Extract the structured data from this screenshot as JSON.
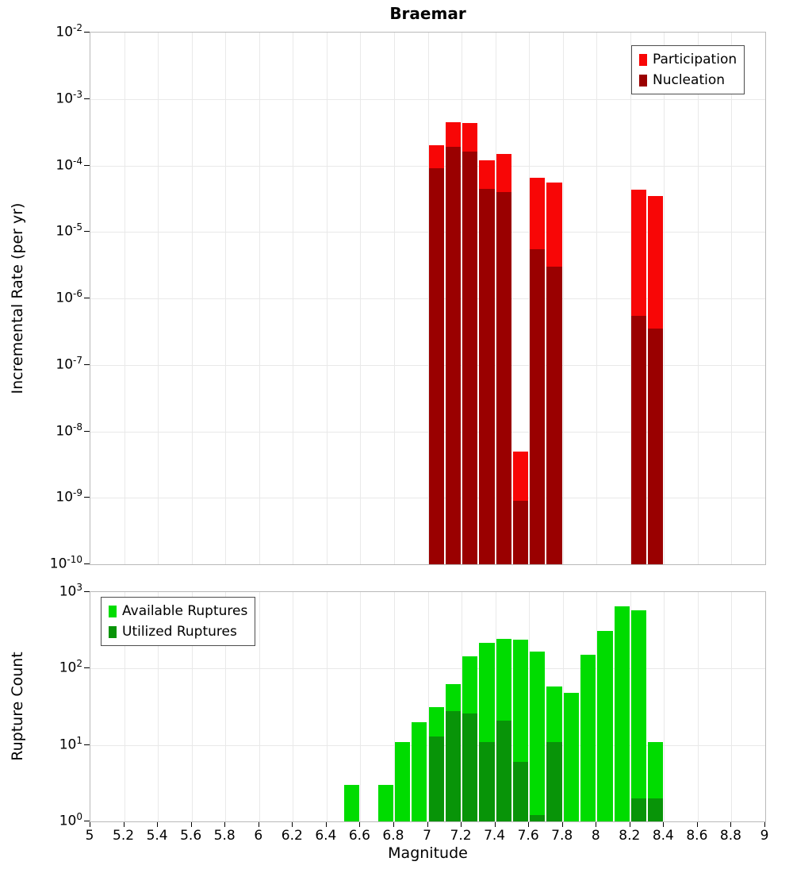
{
  "title": "Braemar",
  "axes": {
    "log_base": "10",
    "x_tick_labels": [
      "5",
      "5.2",
      "5.4",
      "5.6",
      "5.8",
      "6",
      "6.2",
      "6.4",
      "6.6",
      "6.8",
      "7",
      "7.2",
      "7.4",
      "7.6",
      "7.8",
      "8",
      "8.2",
      "8.4",
      "8.6",
      "8.8",
      "9"
    ],
    "top_y_tick_exponents": [
      "-2",
      "-3",
      "-4",
      "-5",
      "-6",
      "-7",
      "-8",
      "-9",
      "-10"
    ],
    "bottom_y_tick_exponents": [
      "3",
      "2",
      "1",
      "0"
    ]
  },
  "chart_data": [
    {
      "type": "bar",
      "panel": "top",
      "title": "Braemar",
      "xlabel": "Magnitude",
      "ylabel": "Incremental Rate (per yr)",
      "xlim": [
        5,
        9
      ],
      "ylim": [
        1e-10,
        0.01
      ],
      "yscale": "log",
      "grid": true,
      "legend_position": "top-right",
      "bin_width": 0.1,
      "bin_starts": [
        7.0,
        7.1,
        7.2,
        7.3,
        7.4,
        7.5,
        7.6,
        7.7,
        8.2,
        8.3
      ],
      "series": [
        {
          "name": "Participation",
          "color": "#f80606",
          "values": [
            0.0002,
            0.00045,
            0.00043,
            0.00012,
            0.00015,
            5e-09,
            6.5e-05,
            5.5e-05,
            4.3e-05,
            3.5e-05
          ]
        },
        {
          "name": "Nucleation",
          "color": "#9a0000",
          "values": [
            9e-05,
            0.00019,
            0.00016,
            4.5e-05,
            4e-05,
            9e-10,
            5.5e-06,
            3e-06,
            5.5e-07,
            3.5e-07
          ]
        }
      ]
    },
    {
      "type": "bar",
      "panel": "bottom",
      "title": "",
      "xlabel": "Magnitude",
      "ylabel": "Rupture Count",
      "xlim": [
        5,
        9
      ],
      "ylim": [
        1,
        1000
      ],
      "yscale": "log",
      "grid": true,
      "legend_position": "top-left",
      "bin_width": 0.1,
      "bin_starts": [
        6.5,
        6.7,
        6.8,
        6.9,
        7.0,
        7.1,
        7.2,
        7.3,
        7.4,
        7.5,
        7.6,
        7.7,
        7.8,
        7.9,
        8.0,
        8.1,
        8.2,
        8.3
      ],
      "series": [
        {
          "name": "Available Ruptures",
          "color": "#00dc00",
          "values": [
            3,
            3,
            11,
            20,
            31,
            62,
            145,
            215,
            245,
            240,
            165,
            58,
            48,
            150,
            310,
            650,
            580,
            11
          ]
        },
        {
          "name": "Utilized Ruptures",
          "color": "#089408",
          "values": [
            0,
            0,
            0,
            0,
            13,
            28,
            26,
            11,
            21,
            6,
            1.2,
            11,
            0,
            0,
            0,
            0,
            2,
            2
          ]
        }
      ]
    }
  ]
}
